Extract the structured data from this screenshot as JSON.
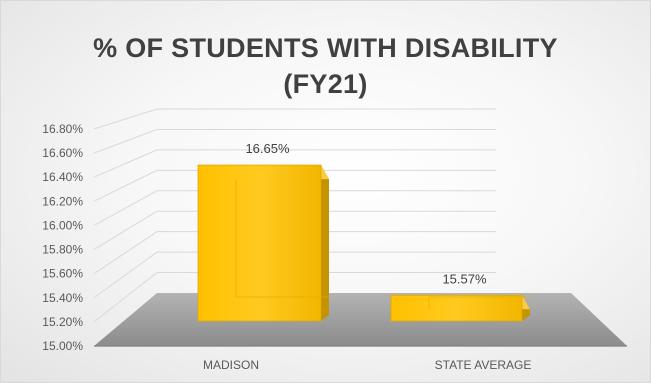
{
  "chart_data": {
    "type": "bar",
    "title_lines": [
      "% OF STUDENTS WITH DISABILITY",
      "(FY21)"
    ],
    "categories": [
      "MADISON",
      "STATE AVERAGE"
    ],
    "values": [
      16.65,
      15.57
    ],
    "data_labels": [
      "16.65%",
      "15.57%"
    ],
    "yticks": [
      "15.00%",
      "15.20%",
      "15.40%",
      "15.60%",
      "15.80%",
      "16.00%",
      "16.20%",
      "16.40%",
      "16.60%",
      "16.80%"
    ],
    "ylim": [
      15.0,
      16.8
    ],
    "style": "3d-column",
    "grid": true,
    "legend": "none",
    "bar_color": "#FFC000",
    "bar_side_color": "#C49300",
    "bar_top_color": "#FFD34D",
    "floor_color": "#A6A6A6"
  }
}
